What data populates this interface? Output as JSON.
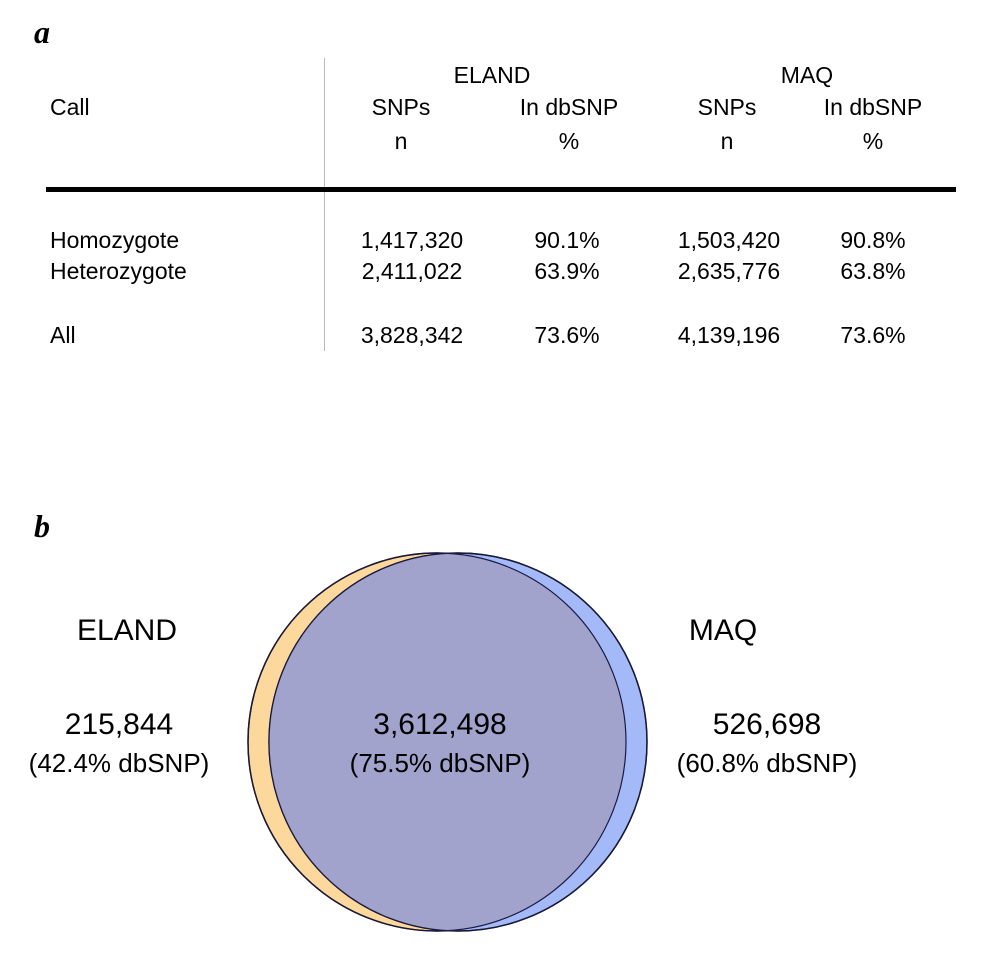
{
  "panel_a": {
    "label": "a",
    "headers": {
      "call": "Call",
      "eland": "ELAND",
      "maq": "MAQ",
      "snps": "SNPs",
      "in_dbsnp": "In dbSNP",
      "n": "n",
      "pct": "%"
    },
    "rows": [
      {
        "call": "Homozygote",
        "eland_n": "1,417,320",
        "eland_pct": "90.1%",
        "maq_n": "1,503,420",
        "maq_pct": "90.8%"
      },
      {
        "call": "Heterozygote",
        "eland_n": "2,411,022",
        "eland_pct": "63.9%",
        "maq_n": "2,635,776",
        "maq_pct": "63.8%"
      },
      {
        "call": "All",
        "eland_n": "3,828,342",
        "eland_pct": "73.6%",
        "maq_n": "4,139,196",
        "maq_pct": "73.6%"
      }
    ]
  },
  "panel_b": {
    "label": "b",
    "left": {
      "name": "ELAND",
      "count": "215,844",
      "dbsnp": "(42.4% dbSNP)",
      "color": "#fdd89c"
    },
    "right": {
      "name": "MAQ",
      "count": "526,698",
      "dbsnp": "(60.8% dbSNP)",
      "color": "#a4b9f8"
    },
    "overlap": {
      "count": "3,612,498",
      "dbsnp": "(75.5% dbSNP)",
      "color": "#a1a3cc"
    }
  }
}
